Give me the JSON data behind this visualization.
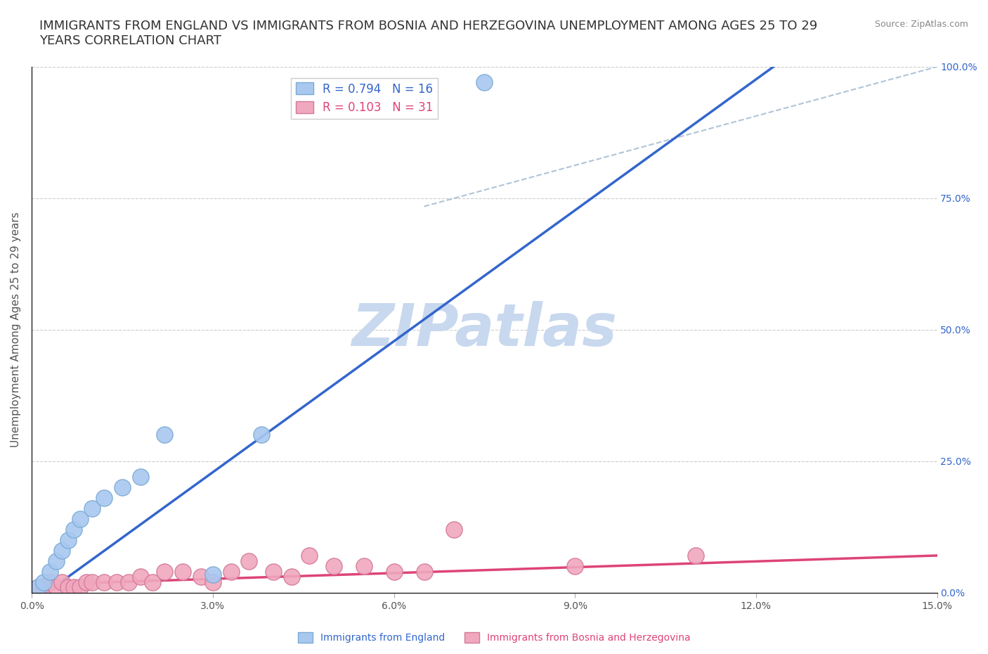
{
  "title": "IMMIGRANTS FROM ENGLAND VS IMMIGRANTS FROM BOSNIA AND HERZEGOVINA UNEMPLOYMENT AMONG AGES 25 TO 29\nYEARS CORRELATION CHART",
  "source": "Source: ZipAtlas.com",
  "ylabel": "Unemployment Among Ages 25 to 29 years",
  "xlim": [
    0.0,
    0.15
  ],
  "ylim": [
    0.0,
    1.0
  ],
  "xticks": [
    0.0,
    0.03,
    0.06,
    0.09,
    0.12,
    0.15
  ],
  "xticklabels": [
    "0.0%",
    "3.0%",
    "6.0%",
    "9.0%",
    "12.0%",
    "15.0%"
  ],
  "yticks": [
    0.0,
    0.25,
    0.5,
    0.75,
    1.0
  ],
  "yticklabels": [
    "0.0%",
    "25.0%",
    "50.0%",
    "75.0%",
    "100.0%"
  ],
  "england_scatter_x": [
    0.001,
    0.002,
    0.003,
    0.004,
    0.005,
    0.006,
    0.007,
    0.008,
    0.01,
    0.012,
    0.015,
    0.018,
    0.022,
    0.03,
    0.075,
    0.038
  ],
  "england_scatter_y": [
    0.01,
    0.02,
    0.04,
    0.06,
    0.08,
    0.1,
    0.12,
    0.14,
    0.16,
    0.18,
    0.2,
    0.22,
    0.3,
    0.035,
    0.97,
    0.3
  ],
  "bosnia_scatter_x": [
    0.001,
    0.002,
    0.003,
    0.004,
    0.005,
    0.006,
    0.007,
    0.008,
    0.009,
    0.01,
    0.012,
    0.014,
    0.016,
    0.018,
    0.02,
    0.022,
    0.025,
    0.028,
    0.03,
    0.033,
    0.036,
    0.04,
    0.043,
    0.046,
    0.05,
    0.055,
    0.06,
    0.065,
    0.07,
    0.09,
    0.11
  ],
  "bosnia_scatter_y": [
    0.01,
    0.01,
    0.02,
    0.01,
    0.02,
    0.01,
    0.01,
    0.01,
    0.02,
    0.02,
    0.02,
    0.02,
    0.02,
    0.03,
    0.02,
    0.04,
    0.04,
    0.03,
    0.02,
    0.04,
    0.06,
    0.04,
    0.03,
    0.07,
    0.05,
    0.05,
    0.04,
    0.04,
    0.12,
    0.05,
    0.07
  ],
  "england_color": "#a8c8f0",
  "england_edge_color": "#7aaad4",
  "bosnia_color": "#f0a8be",
  "bosnia_edge_color": "#d47898",
  "england_line_color": "#3366cc",
  "bosnia_line_color": "#dd4477",
  "england_R": 0.794,
  "england_N": 16,
  "bosnia_R": 0.103,
  "bosnia_N": 31,
  "diag_line_color": "#b0c4d8",
  "grid_color": "#cccccc",
  "title_fontsize": 13,
  "axis_label_fontsize": 11,
  "tick_fontsize": 10,
  "legend_fontsize": 12,
  "watermark_text": "ZIPatlas",
  "watermark_color": "#c8d8ee",
  "watermark_fontsize": 60,
  "right_ytick_color": "#3366cc"
}
